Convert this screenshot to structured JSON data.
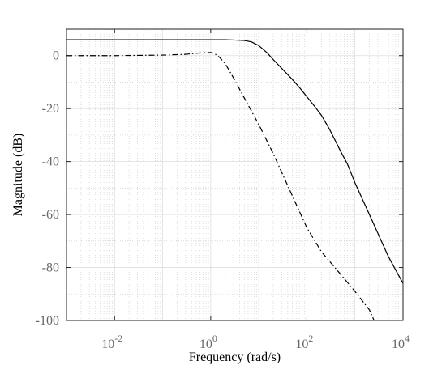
{
  "chart_data": {
    "type": "line",
    "title": "",
    "xlabel": "Frequency  (rad/s)",
    "ylabel": "Magnitude (dB)",
    "xscale": "log",
    "xlim": [
      0.001,
      10000
    ],
    "ylim": [
      -100,
      10
    ],
    "grid": "on (major and minor, dotted minor)",
    "legend": "none",
    "x_ticks": [
      {
        "value": 0.01,
        "base": "10",
        "exp": "-2"
      },
      {
        "value": 1,
        "base": "10",
        "exp": "0"
      },
      {
        "value": 100,
        "base": "10",
        "exp": "2"
      },
      {
        "value": 10000,
        "base": "10",
        "exp": "4"
      }
    ],
    "y_ticks": [
      {
        "value": 0,
        "label": "0"
      },
      {
        "value": -20,
        "label": "-20"
      },
      {
        "value": -40,
        "label": "-40"
      },
      {
        "value": -60,
        "label": "-60"
      },
      {
        "value": -80,
        "label": "-80"
      },
      {
        "value": -100,
        "label": "-100"
      }
    ],
    "series": [
      {
        "style": "solid",
        "color": "#000000",
        "x": [
          0.001,
          0.01,
          0.1,
          1,
          2,
          3,
          5,
          7,
          10,
          15,
          20,
          30,
          50,
          70,
          100,
          150,
          200,
          300,
          500,
          700,
          1000,
          2000,
          5000,
          10000
        ],
        "y": [
          6.0,
          6.0,
          6.0,
          6.0,
          6.0,
          5.9,
          5.7,
          5.2,
          3.8,
          1.0,
          -1.5,
          -4.8,
          -9.0,
          -12.0,
          -15.5,
          -19.5,
          -22.5,
          -28.0,
          -36.0,
          -41.0,
          -48.0,
          -60.0,
          -76.0,
          -86.0
        ]
      },
      {
        "style": "dash-dot",
        "color": "#000000",
        "x": [
          0.001,
          0.01,
          0.1,
          0.3,
          0.5,
          0.7,
          1.0,
          1.2,
          1.5,
          2.0,
          3.0,
          5.0,
          10,
          20,
          50,
          100,
          200,
          500,
          1000,
          2000,
          2500
        ],
        "y": [
          0.0,
          0.0,
          0.2,
          0.5,
          0.9,
          1.1,
          1.2,
          0.8,
          -0.5,
          -3.0,
          -8.5,
          -16.0,
          -26.0,
          -37.0,
          -53.0,
          -65.0,
          -74.0,
          -82.5,
          -89.0,
          -96.0,
          -100.0
        ]
      }
    ]
  }
}
